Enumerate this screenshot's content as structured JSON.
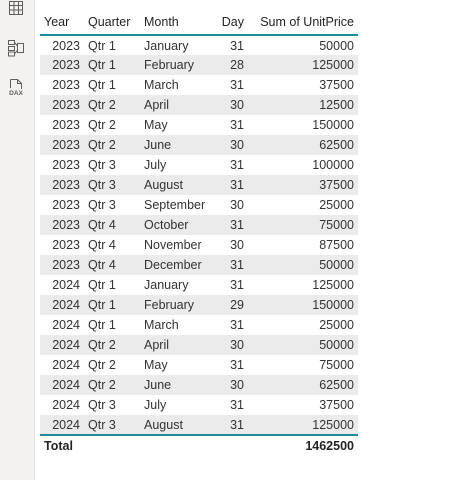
{
  "colors": {
    "accent": "#1f8c96",
    "band": "#ebebeb",
    "rail": "#f3f2f1"
  },
  "rail": {
    "items": [
      {
        "icon": "table-view-icon"
      },
      {
        "icon": "model-view-icon"
      },
      {
        "icon": "dax-query-view-icon",
        "label": "DAX"
      }
    ]
  },
  "table": {
    "headers": {
      "year": "Year",
      "quarter": "Quarter",
      "month": "Month",
      "day": "Day",
      "sum": "Sum of UnitPrice"
    },
    "rows": [
      {
        "year": "2023",
        "quarter": "Qtr 1",
        "month": "January",
        "day": "31",
        "sum": "50000"
      },
      {
        "year": "2023",
        "quarter": "Qtr 1",
        "month": "February",
        "day": "28",
        "sum": "125000"
      },
      {
        "year": "2023",
        "quarter": "Qtr 1",
        "month": "March",
        "day": "31",
        "sum": "37500"
      },
      {
        "year": "2023",
        "quarter": "Qtr 2",
        "month": "April",
        "day": "30",
        "sum": "12500"
      },
      {
        "year": "2023",
        "quarter": "Qtr 2",
        "month": "May",
        "day": "31",
        "sum": "150000"
      },
      {
        "year": "2023",
        "quarter": "Qtr 2",
        "month": "June",
        "day": "30",
        "sum": "62500"
      },
      {
        "year": "2023",
        "quarter": "Qtr 3",
        "month": "July",
        "day": "31",
        "sum": "100000"
      },
      {
        "year": "2023",
        "quarter": "Qtr 3",
        "month": "August",
        "day": "31",
        "sum": "37500"
      },
      {
        "year": "2023",
        "quarter": "Qtr 3",
        "month": "September",
        "day": "30",
        "sum": "25000"
      },
      {
        "year": "2023",
        "quarter": "Qtr 4",
        "month": "October",
        "day": "31",
        "sum": "75000"
      },
      {
        "year": "2023",
        "quarter": "Qtr 4",
        "month": "November",
        "day": "30",
        "sum": "87500"
      },
      {
        "year": "2023",
        "quarter": "Qtr 4",
        "month": "December",
        "day": "31",
        "sum": "50000"
      },
      {
        "year": "2024",
        "quarter": "Qtr 1",
        "month": "January",
        "day": "31",
        "sum": "125000"
      },
      {
        "year": "2024",
        "quarter": "Qtr 1",
        "month": "February",
        "day": "29",
        "sum": "150000"
      },
      {
        "year": "2024",
        "quarter": "Qtr 1",
        "month": "March",
        "day": "31",
        "sum": "25000"
      },
      {
        "year": "2024",
        "quarter": "Qtr 2",
        "month": "April",
        "day": "30",
        "sum": "50000"
      },
      {
        "year": "2024",
        "quarter": "Qtr 2",
        "month": "May",
        "day": "31",
        "sum": "75000"
      },
      {
        "year": "2024",
        "quarter": "Qtr 2",
        "month": "June",
        "day": "30",
        "sum": "62500"
      },
      {
        "year": "2024",
        "quarter": "Qtr 3",
        "month": "July",
        "day": "31",
        "sum": "37500"
      },
      {
        "year": "2024",
        "quarter": "Qtr 3",
        "month": "August",
        "day": "31",
        "sum": "125000"
      }
    ],
    "total": {
      "label": "Total",
      "sum": "1462500"
    }
  }
}
